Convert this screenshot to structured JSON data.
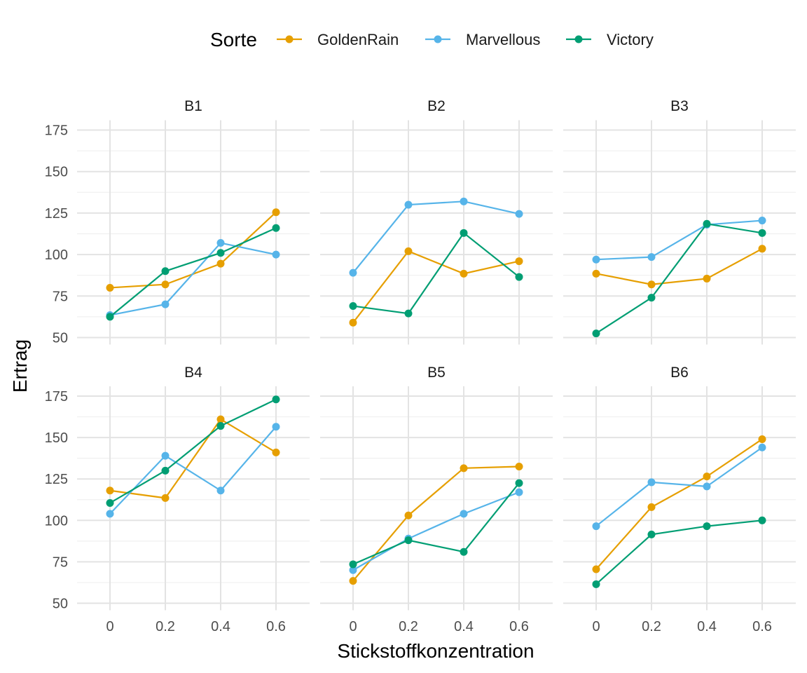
{
  "chart_data": {
    "type": "line",
    "facets": [
      "B1",
      "B2",
      "B3",
      "B4",
      "B5",
      "B6"
    ],
    "x": [
      0,
      0.2,
      0.4,
      0.6
    ],
    "x_tick_labels": [
      "0",
      "0.2",
      "0.4",
      "0.6"
    ],
    "xlabel": "Stickstoffkonzentration",
    "ylabel": "Ertrag",
    "ylim": [
      50,
      175
    ],
    "y_ticks": [
      50,
      75,
      100,
      125,
      150,
      175
    ],
    "grid": true,
    "legend": {
      "title": "Sorte",
      "position": "top",
      "entries": [
        "GoldenRain",
        "Marvellous",
        "Victory"
      ]
    },
    "colors": {
      "GoldenRain": "#E69F00",
      "Marvellous": "#56B4E9",
      "Victory": "#009E73"
    },
    "panels": [
      {
        "facet": "B1",
        "series": [
          {
            "name": "GoldenRain",
            "values": [
              80,
              82,
              94.5,
              125.5
            ]
          },
          {
            "name": "Marvellous",
            "values": [
              63.5,
              70,
              107,
              100
            ]
          },
          {
            "name": "Victory",
            "values": [
              62.5,
              90,
              101,
              116
            ]
          }
        ]
      },
      {
        "facet": "B2",
        "series": [
          {
            "name": "GoldenRain",
            "values": [
              59,
              102,
              88.5,
              96
            ]
          },
          {
            "name": "Marvellous",
            "values": [
              89,
              130,
              132,
              124.5
            ]
          },
          {
            "name": "Victory",
            "values": [
              69,
              64.5,
              113,
              86.5
            ]
          }
        ]
      },
      {
        "facet": "B3",
        "series": [
          {
            "name": "GoldenRain",
            "values": [
              88.5,
              82,
              85.5,
              103.5
            ]
          },
          {
            "name": "Marvellous",
            "values": [
              97,
              98.5,
              118,
              120.5
            ]
          },
          {
            "name": "Victory",
            "values": [
              52.5,
              74,
              118.5,
              113
            ]
          }
        ]
      },
      {
        "facet": "B4",
        "series": [
          {
            "name": "GoldenRain",
            "values": [
              118,
              113.5,
              161,
              141
            ]
          },
          {
            "name": "Marvellous",
            "values": [
              104,
              139,
              118,
              156.5
            ]
          },
          {
            "name": "Victory",
            "values": [
              110.5,
              130,
              157,
              173
            ]
          }
        ]
      },
      {
        "facet": "B5",
        "series": [
          {
            "name": "GoldenRain",
            "values": [
              63.5,
              103,
              131.5,
              132.5
            ]
          },
          {
            "name": "Marvellous",
            "values": [
              70,
              89,
              104,
              117
            ]
          },
          {
            "name": "Victory",
            "values": [
              73.5,
              88,
              81,
              122.5
            ]
          }
        ]
      },
      {
        "facet": "B6",
        "series": [
          {
            "name": "GoldenRain",
            "values": [
              70.5,
              108,
              126.5,
              149
            ]
          },
          {
            "name": "Marvellous",
            "values": [
              96.5,
              123,
              120.5,
              144
            ]
          },
          {
            "name": "Victory",
            "values": [
              61.5,
              91.5,
              96.5,
              100
            ]
          }
        ]
      }
    ]
  }
}
